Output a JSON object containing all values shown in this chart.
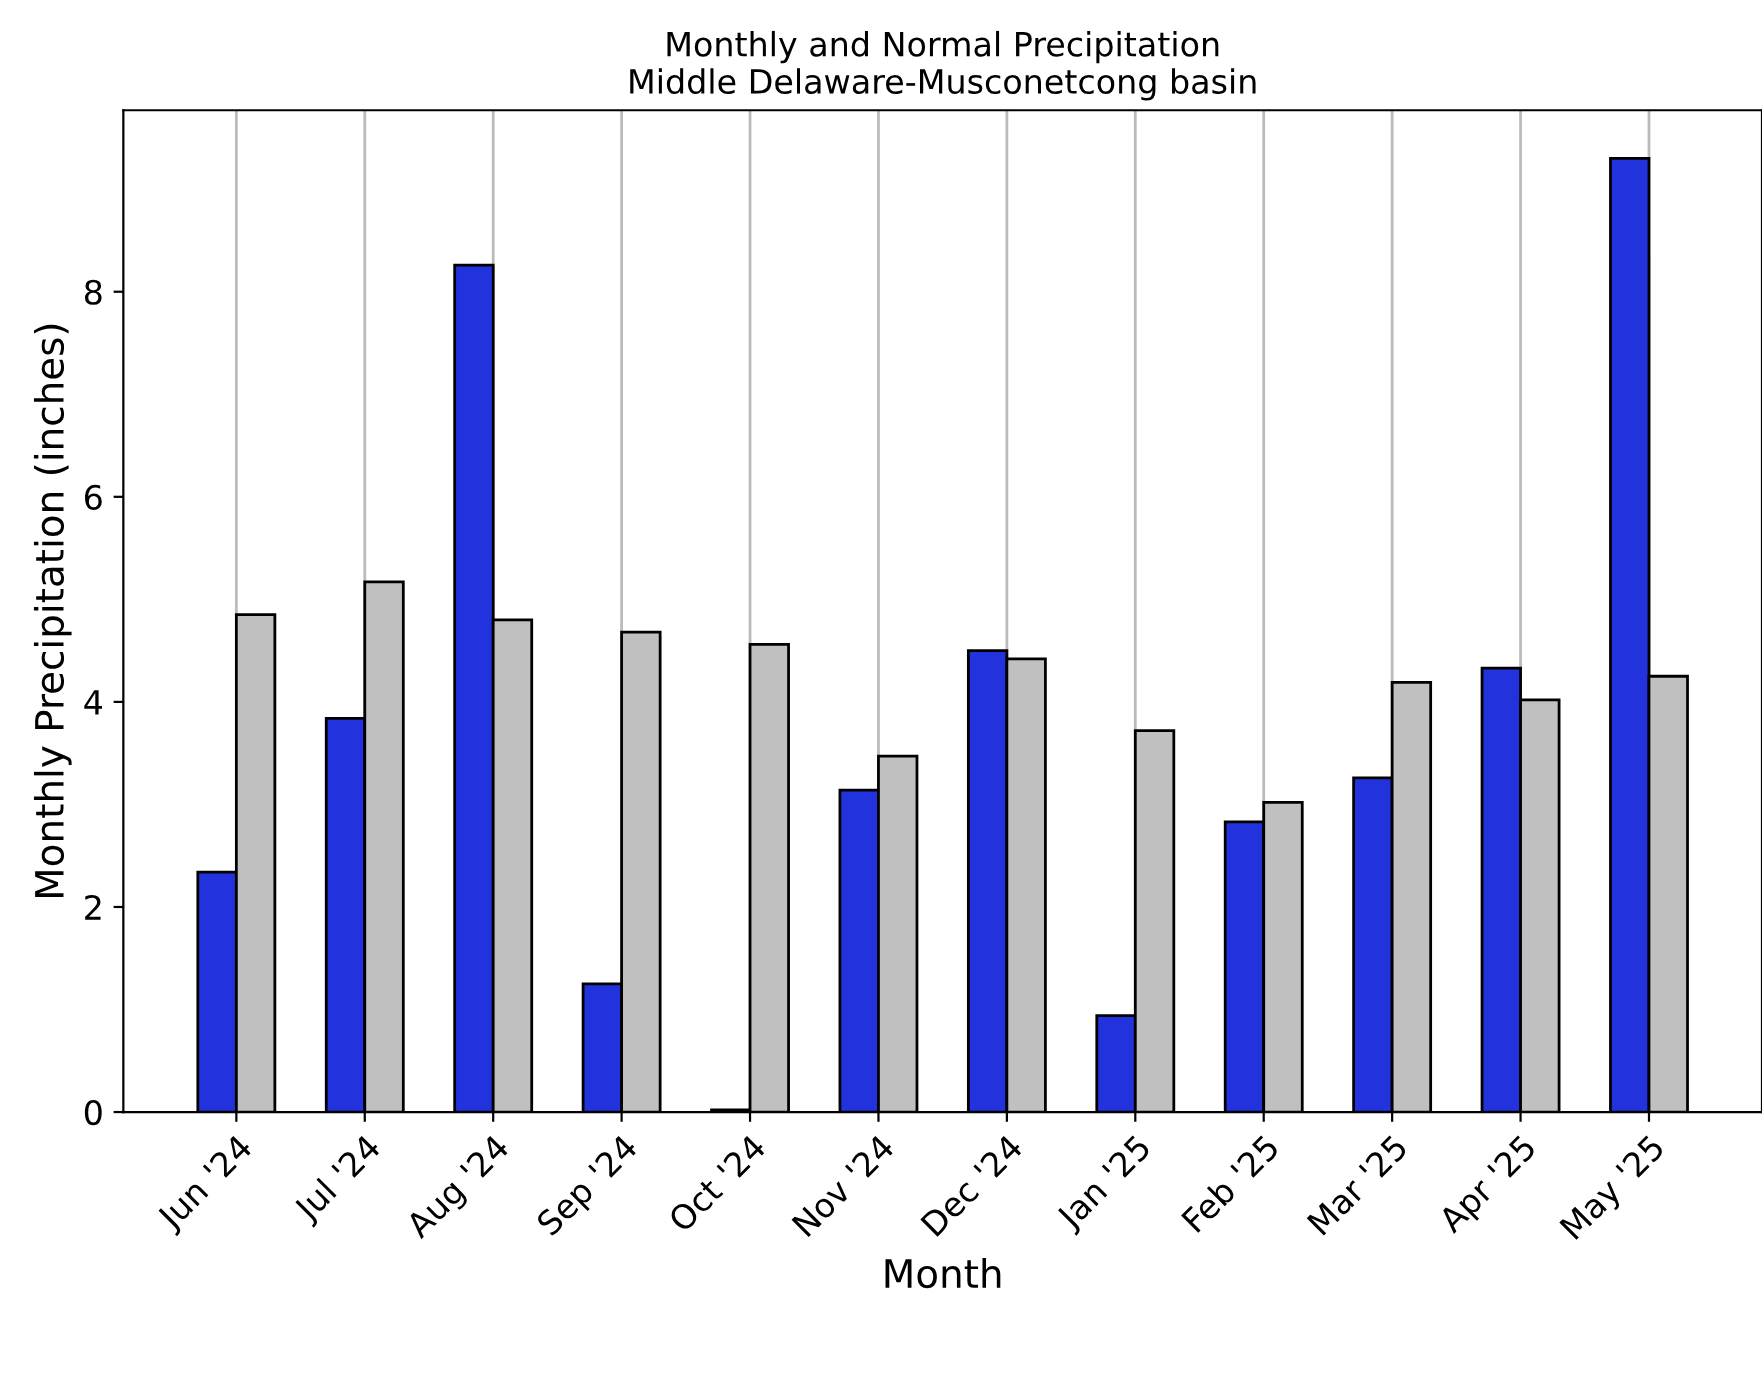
{
  "chart_data": {
    "type": "bar",
    "title": "Monthly and Normal Precipitation",
    "subtitle": "Middle Delaware-Musconetcong basin",
    "xlabel": "Month",
    "ylabel": "Monthly Precipitation (inches)",
    "categories": [
      "Jun '24",
      "Jul '24",
      "Aug '24",
      "Sep '24",
      "Oct '24",
      "Nov '24",
      "Dec '24",
      "Jan '25",
      "Feb '25",
      "Mar '25",
      "Apr '25",
      "May '25"
    ],
    "series": [
      {
        "color": "#2233dd",
        "values": [
          2.34,
          3.84,
          8.26,
          1.25,
          0.02,
          3.14,
          4.5,
          0.94,
          2.83,
          3.26,
          4.33,
          9.3
        ]
      },
      {
        "color": "#c0c0c0",
        "values": [
          4.85,
          5.17,
          4.8,
          4.68,
          4.56,
          3.47,
          4.42,
          3.72,
          3.02,
          4.19,
          4.02,
          4.25
        ]
      }
    ],
    "ylim": [
      0,
      9.77
    ],
    "yticks": [
      0,
      2,
      4,
      6,
      8
    ],
    "grid": "x"
  }
}
